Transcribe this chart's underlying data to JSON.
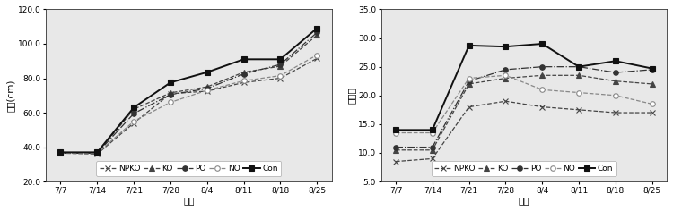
{
  "x_labels": [
    "7/7",
    "7/14",
    "7/21",
    "7/28",
    "8/4",
    "8/11",
    "8/18",
    "8/25"
  ],
  "x_values": [
    0,
    1,
    2,
    3,
    4,
    5,
    6,
    7
  ],
  "left_ylabel": "초장(cm)",
  "left_xlabel": "날짜",
  "left_ylim": [
    20.0,
    120.0
  ],
  "left_yticks": [
    20.0,
    40.0,
    60.0,
    80.0,
    100.0,
    120.0
  ],
  "left_series": {
    "NPKO": [
      36.5,
      36.0,
      54.0,
      71.0,
      72.5,
      77.5,
      80.0,
      91.5
    ],
    "KO": [
      36.5,
      36.5,
      62.0,
      71.5,
      75.0,
      83.5,
      87.0,
      105.0
    ],
    "PO": [
      36.5,
      36.5,
      59.5,
      70.5,
      74.0,
      82.5,
      88.0,
      106.5
    ],
    "NO": [
      36.5,
      36.5,
      55.0,
      66.0,
      73.0,
      78.5,
      81.5,
      93.5
    ],
    "Con": [
      37.0,
      37.0,
      63.0,
      77.5,
      83.5,
      91.0,
      91.0,
      109.0
    ]
  },
  "right_ylabel": "분엽수",
  "right_xlabel": "날짜",
  "right_ylim": [
    5.0,
    35.0
  ],
  "right_yticks": [
    5.0,
    10.0,
    15.0,
    20.0,
    25.0,
    30.0,
    35.0
  ],
  "right_series": {
    "NPKO": [
      8.5,
      9.0,
      18.0,
      19.0,
      18.0,
      17.5,
      17.0,
      17.0
    ],
    "KO": [
      10.5,
      10.5,
      22.0,
      23.0,
      23.5,
      23.5,
      22.5,
      22.0
    ],
    "PO": [
      11.0,
      11.0,
      22.5,
      24.5,
      25.0,
      25.0,
      24.0,
      24.5
    ],
    "NO": [
      13.5,
      13.5,
      23.0,
      23.5,
      21.0,
      20.5,
      20.0,
      18.5
    ],
    "Con": [
      14.0,
      14.0,
      28.7,
      28.5,
      29.0,
      25.0,
      26.0,
      24.7
    ]
  },
  "series_order": [
    "NPKO",
    "KO",
    "PO",
    "NO",
    "Con"
  ],
  "series_styles": {
    "NPKO": {
      "linestyle": "--",
      "marker": "x",
      "color": "#444444",
      "markersize": 4,
      "linewidth": 0.9,
      "mfc": "none"
    },
    "KO": {
      "linestyle": "--",
      "marker": "^",
      "color": "#444444",
      "markersize": 4,
      "linewidth": 0.9,
      "mfc": "#444444"
    },
    "PO": {
      "linestyle": "-.",
      "marker": "o",
      "color": "#333333",
      "markersize": 4,
      "linewidth": 0.9,
      "mfc": "#333333"
    },
    "NO": {
      "linestyle": "--",
      "marker": "o",
      "color": "#888888",
      "markersize": 4,
      "linewidth": 0.9,
      "mfc": "white"
    },
    "Con": {
      "linestyle": "-",
      "marker": "s",
      "color": "#111111",
      "markersize": 5,
      "linewidth": 1.4,
      "mfc": "#111111"
    }
  },
  "legend_fontsize": 6.5,
  "tick_fontsize": 6.5,
  "label_fontsize": 7.5,
  "background_color": "#ffffff",
  "plot_bg": "#e8e8e8"
}
